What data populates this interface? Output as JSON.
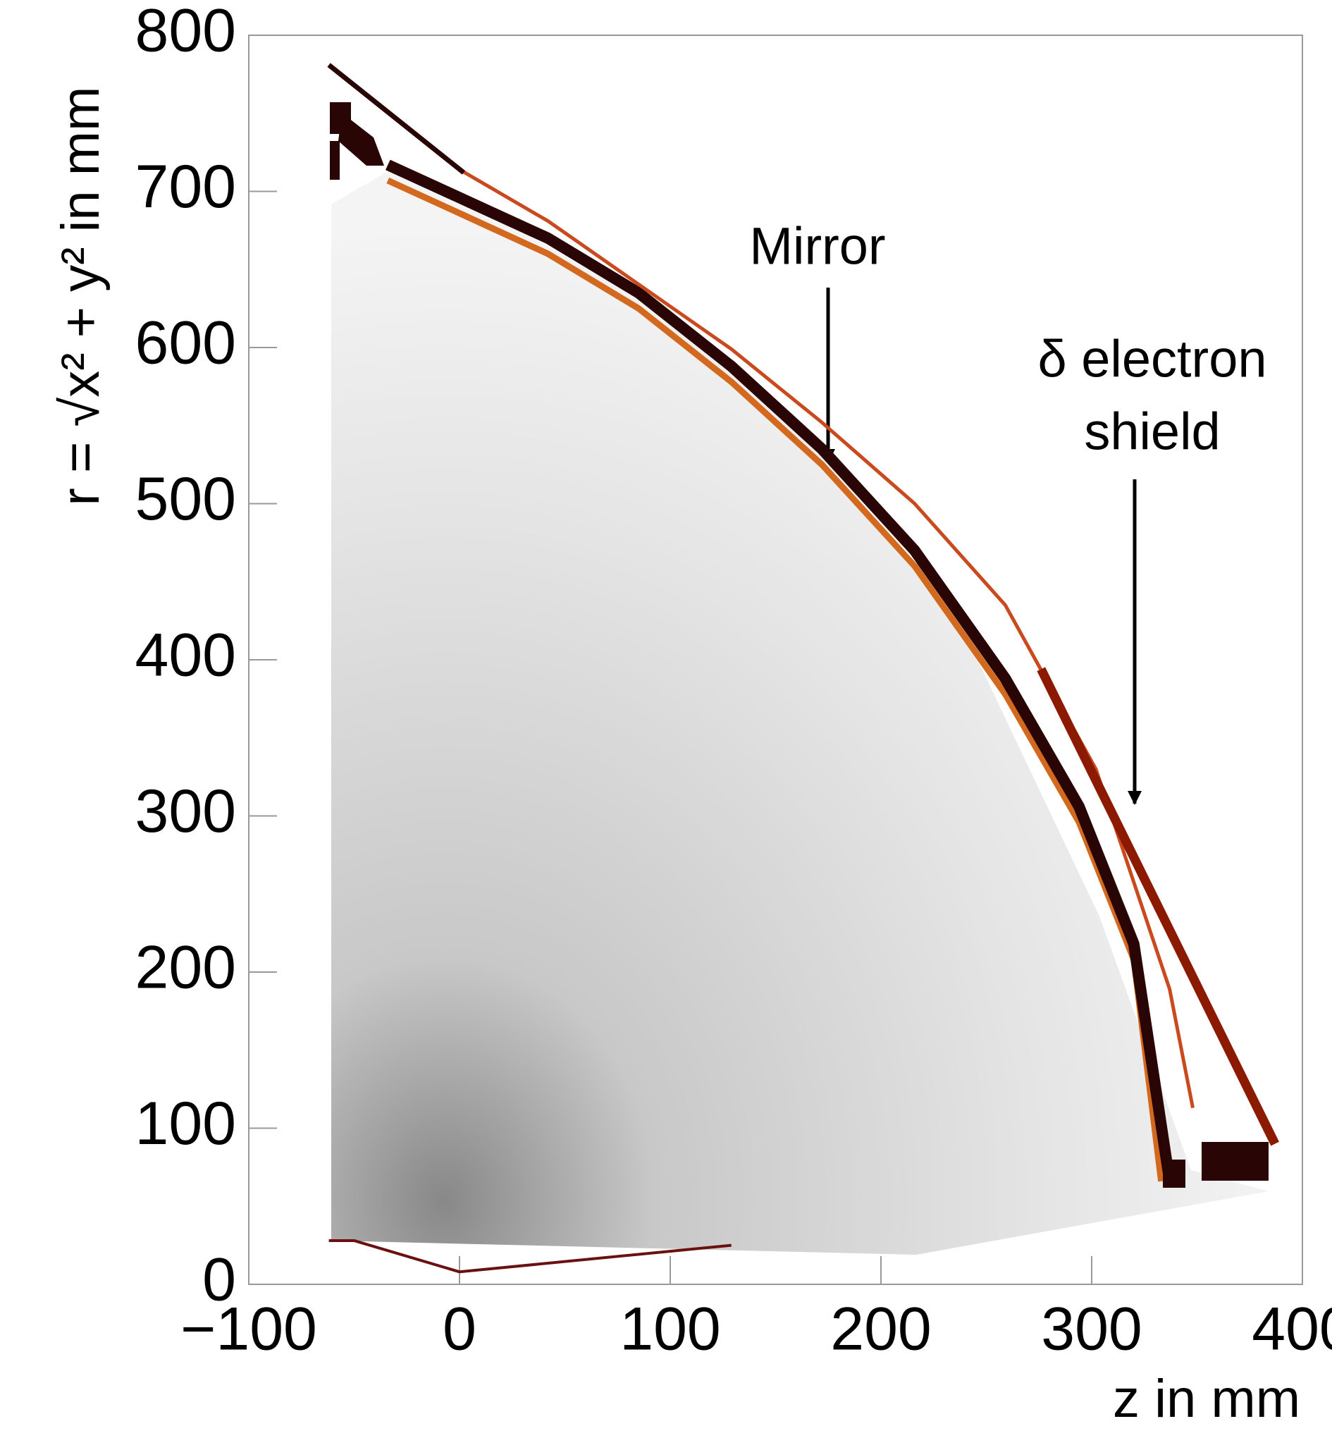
{
  "chart_data": {
    "type": "line",
    "xlabel": "z in mm",
    "ylabel": "r = √x² + y² in mm",
    "annotations": [
      "Mirror",
      "δ electron",
      "shield"
    ],
    "xlim": [
      -100,
      400
    ],
    "ylim": [
      0,
      800
    ],
    "xticks": [
      {
        "value": -100,
        "label": "−100"
      },
      0,
      100,
      200,
      300,
      400
    ],
    "yticks": [
      0,
      100,
      200,
      300,
      400,
      500,
      600,
      700,
      800
    ],
    "series": [
      {
        "color": "#d2691e",
        "x": [
          -34,
          0,
          42,
          85,
          129,
          172,
          216,
          259,
          294,
          320,
          333
        ],
        "values": [
          707,
          686,
          660,
          625,
          578,
          525,
          460,
          378,
          296,
          208,
          66
        ]
      },
      {
        "color": "#2a0505",
        "x": [
          -34,
          0,
          42,
          85,
          129,
          172,
          216,
          259,
          294,
          320,
          337
        ],
        "values": [
          717,
          696,
          670,
          635,
          588,
          535,
          470,
          388,
          306,
          218,
          66
        ]
      },
      {
        "color": "#c84a1e",
        "x": [
          0,
          42,
          129,
          172,
          216,
          259,
          302,
          337,
          348
        ],
        "values": [
          714,
          681,
          599,
          552,
          500,
          435,
          330,
          189,
          113
        ]
      },
      {
        "color": "#8b1a00",
        "x": [
          276,
          387
        ],
        "values": [
          394,
          90
        ]
      },
      {
        "color": "#2a0505",
        "x": [
          -62,
          2
        ],
        "values": [
          781,
          712
        ]
      },
      {
        "color": "#6b1010",
        "x": [
          -62,
          -50,
          0,
          129
        ],
        "values": [
          28,
          28,
          8,
          25
        ]
      }
    ]
  }
}
